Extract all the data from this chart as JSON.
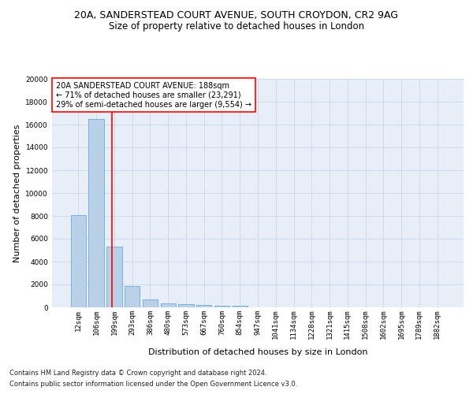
{
  "title1": "20A, SANDERSTEAD COURT AVENUE, SOUTH CROYDON, CR2 9AG",
  "title2": "Size of property relative to detached houses in London",
  "xlabel": "Distribution of detached houses by size in London",
  "ylabel": "Number of detached properties",
  "bar_color": "#b8d0e8",
  "bar_edge_color": "#5a9fd4",
  "grid_color": "#c8d8ec",
  "background_color": "#e8eef8",
  "categories": [
    "12sqm",
    "106sqm",
    "199sqm",
    "293sqm",
    "386sqm",
    "480sqm",
    "573sqm",
    "667sqm",
    "760sqm",
    "854sqm",
    "947sqm",
    "1041sqm",
    "1134sqm",
    "1228sqm",
    "1321sqm",
    "1415sqm",
    "1508sqm",
    "1602sqm",
    "1695sqm",
    "1789sqm",
    "1882sqm"
  ],
  "values": [
    8100,
    16500,
    5300,
    1850,
    700,
    350,
    270,
    200,
    170,
    140,
    0,
    0,
    0,
    0,
    0,
    0,
    0,
    0,
    0,
    0,
    0
  ],
  "ylim": [
    0,
    20000
  ],
  "yticks": [
    0,
    2000,
    4000,
    6000,
    8000,
    10000,
    12000,
    14000,
    16000,
    18000,
    20000
  ],
  "property_line_x": 1.85,
  "annotation_text": "20A SANDERSTEAD COURT AVENUE: 188sqm\n← 71% of detached houses are smaller (23,291)\n29% of semi-detached houses are larger (9,554) →",
  "footer1": "Contains HM Land Registry data © Crown copyright and database right 2024.",
  "footer2": "Contains public sector information licensed under the Open Government Licence v3.0.",
  "title_fontsize": 9,
  "subtitle_fontsize": 8.5,
  "axis_label_fontsize": 8,
  "tick_fontsize": 6.5,
  "annotation_fontsize": 7,
  "footer_fontsize": 6
}
